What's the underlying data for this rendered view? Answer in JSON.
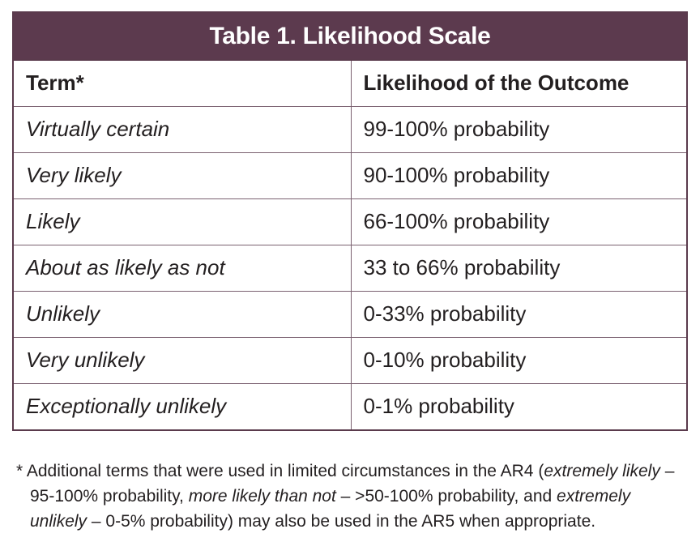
{
  "table": {
    "title": "Table 1. Likelihood Scale",
    "headers": [
      "Term*",
      "Likelihood of the Outcome"
    ],
    "rows": [
      [
        "Virtually certain",
        "99-100% probability"
      ],
      [
        "Very likely",
        "90-100% probability"
      ],
      [
        "Likely",
        "66-100% probability"
      ],
      [
        "About as likely as not",
        "33 to 66% probability"
      ],
      [
        "Unlikely",
        "0-33% probability"
      ],
      [
        "Very unlikely",
        "0-10% probability"
      ],
      [
        "Exceptionally unlikely",
        "0-1% probability"
      ]
    ]
  },
  "footnote": {
    "marker": "*",
    "line1_text": " Additional terms that were used in limited circumstances in the AR4 (",
    "line1_em": "extremely likely",
    "line1_tail": " –",
    "line2_text": "95-100% probability, ",
    "line2_em1": "more likely than not",
    "line2_mid": " – >50-100% probability, and ",
    "line2_em2": "extremely",
    "line3_em": "unlikely",
    "line3_text": " – 0-5% probability) may also be used in the AR5 when appropriate."
  },
  "colors": {
    "header_bg": "#5c3a4e",
    "header_text": "#ffffff",
    "border": "#5a3a4c"
  }
}
